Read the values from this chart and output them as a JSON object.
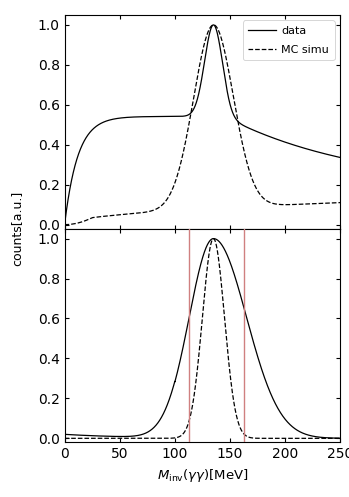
{
  "xlim": [
    0,
    250
  ],
  "ylim_upper": [
    -0.02,
    1.05
  ],
  "ylim_lower": [
    -0.02,
    1.05
  ],
  "xlabel": "M_{inv}(\\gamma\\gamma)[MeV]",
  "ylabel": "counts[a.u.]",
  "xticks": [
    0,
    50,
    100,
    150,
    200,
    250
  ],
  "yticks": [
    0,
    0.2,
    0.4,
    0.6,
    0.8,
    1
  ],
  "legend_labels": [
    "data",
    "MC simu"
  ],
  "vlines": [
    113,
    163
  ],
  "vline_color": "#d08080",
  "pi0_mass": 135
}
